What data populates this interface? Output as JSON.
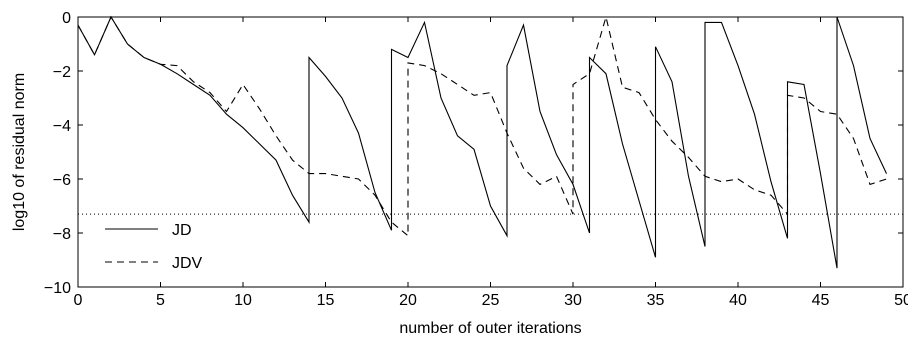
{
  "chart_data": {
    "type": "line",
    "title": "",
    "xlabel": "number of outer iterations",
    "ylabel": "log10 of residual norm",
    "xlim": [
      0,
      50
    ],
    "ylim": [
      -10,
      0
    ],
    "xticks": [
      0,
      5,
      10,
      15,
      20,
      25,
      30,
      35,
      40,
      45,
      50
    ],
    "yticks": [
      0,
      -2,
      -4,
      -6,
      -8,
      -10
    ],
    "xtick_labels": [
      "0",
      "5",
      "10",
      "15",
      "20",
      "25",
      "30",
      "35",
      "40",
      "45",
      "50"
    ],
    "ytick_labels": [
      "0",
      "−2",
      "−4",
      "−6",
      "−8",
      "−10"
    ],
    "grid": false,
    "legend_position": "bottom-left",
    "reference_line": {
      "y": -7.3,
      "style": "dotted"
    },
    "series": [
      {
        "name": "JD",
        "style": "solid",
        "color": "#000000",
        "points": [
          [
            0,
            -0.3
          ],
          [
            1,
            -1.4
          ],
          [
            2,
            0
          ],
          [
            3,
            -1.0
          ],
          [
            4,
            -1.5
          ],
          [
            5,
            -1.75
          ],
          [
            6,
            -2.1
          ],
          [
            7,
            -2.5
          ],
          [
            8,
            -2.9
          ],
          [
            9,
            -3.6
          ],
          [
            10,
            -4.1
          ],
          [
            11,
            -4.7
          ],
          [
            12,
            -5.3
          ],
          [
            13,
            -6.6
          ],
          [
            14,
            -7.6
          ],
          [
            14,
            -1.5
          ],
          [
            15,
            -2.2
          ],
          [
            16,
            -3.0
          ],
          [
            17,
            -4.3
          ],
          [
            18,
            -6.5
          ],
          [
            19,
            -7.9
          ],
          [
            19,
            -1.2
          ],
          [
            20,
            -1.5
          ],
          [
            21,
            -0.2
          ],
          [
            22,
            -3.0
          ],
          [
            23,
            -4.4
          ],
          [
            24,
            -4.9
          ],
          [
            25,
            -7.0
          ],
          [
            26,
            -8.1
          ],
          [
            26,
            -1.8
          ],
          [
            27,
            -0.3
          ],
          [
            28,
            -3.5
          ],
          [
            29,
            -5.1
          ],
          [
            30,
            -6.2
          ],
          [
            31,
            -8.0
          ],
          [
            31,
            -1.5
          ],
          [
            32,
            -2.1
          ],
          [
            33,
            -4.7
          ],
          [
            34,
            -6.8
          ],
          [
            35,
            -8.9
          ],
          [
            35,
            -1.1
          ],
          [
            36,
            -2.4
          ],
          [
            37,
            -5.9
          ],
          [
            38,
            -8.5
          ],
          [
            38,
            -0.2
          ],
          [
            39,
            -0.2
          ],
          [
            40,
            -1.8
          ],
          [
            41,
            -3.6
          ],
          [
            42,
            -6.1
          ],
          [
            43,
            -8.2
          ],
          [
            43,
            -2.4
          ],
          [
            44,
            -2.5
          ],
          [
            45,
            -5.8
          ],
          [
            46,
            -9.3
          ],
          [
            46,
            0
          ],
          [
            47,
            -1.8
          ],
          [
            48,
            -4.5
          ],
          [
            49,
            -5.8
          ]
        ]
      },
      {
        "name": "JDV",
        "style": "dashed",
        "color": "#000000",
        "points": [
          [
            0,
            -0.3
          ],
          [
            1,
            -1.4
          ],
          [
            2,
            0
          ],
          [
            3,
            -1.0
          ],
          [
            4,
            -1.5
          ],
          [
            5,
            -1.75
          ],
          [
            6,
            -1.8
          ],
          [
            7,
            -2.4
          ],
          [
            8,
            -2.8
          ],
          [
            9,
            -3.5
          ],
          [
            10,
            -2.5
          ],
          [
            11,
            -3.4
          ],
          [
            12,
            -4.4
          ],
          [
            13,
            -5.3
          ],
          [
            14,
            -5.8
          ],
          [
            15,
            -5.8
          ],
          [
            16,
            -5.9
          ],
          [
            17,
            -6.0
          ],
          [
            18,
            -6.6
          ],
          [
            19,
            -7.6
          ],
          [
            20,
            -8.1
          ],
          [
            20,
            -1.7
          ],
          [
            21,
            -1.8
          ],
          [
            22,
            -2.1
          ],
          [
            23,
            -2.5
          ],
          [
            24,
            -2.9
          ],
          [
            25,
            -2.8
          ],
          [
            26,
            -4.3
          ],
          [
            27,
            -5.6
          ],
          [
            28,
            -6.2
          ],
          [
            29,
            -5.9
          ],
          [
            30,
            -7.3
          ],
          [
            30,
            -2.5
          ],
          [
            31,
            -2.1
          ],
          [
            32,
            0
          ],
          [
            33,
            -2.6
          ],
          [
            34,
            -2.8
          ],
          [
            35,
            -3.8
          ],
          [
            36,
            -4.6
          ],
          [
            37,
            -5.2
          ],
          [
            38,
            -5.9
          ],
          [
            39,
            -6.1
          ],
          [
            40,
            -6.0
          ],
          [
            41,
            -6.4
          ],
          [
            42,
            -6.6
          ],
          [
            43,
            -7.3
          ],
          [
            43,
            -2.9
          ],
          [
            44,
            -3.0
          ],
          [
            45,
            -3.5
          ],
          [
            46,
            -3.6
          ],
          [
            47,
            -4.5
          ],
          [
            48,
            -6.2
          ],
          [
            49,
            -6.0
          ]
        ]
      }
    ]
  }
}
